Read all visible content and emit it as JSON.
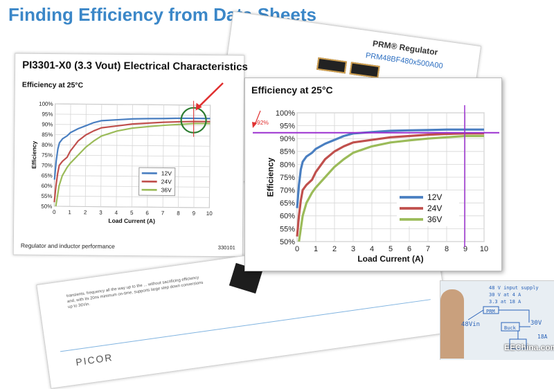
{
  "slide": {
    "title": "Finding Efficiency from Data Sheets"
  },
  "back_sheet": {
    "title": "PRM® Regulator",
    "part_number": "PRM48BF480x500A00"
  },
  "main_sheet": {
    "title": "PI3301-X0 (3.3 Vout) Electrical Characteristics",
    "caption": "Regulator and inductor performance",
    "code": "330101"
  },
  "bottom_sheet": {
    "text": "transients. frequency all the way up to the ... without sacrificing efficiency and, with its 20ns minimum on-time, supports large step down conversions up to 36Vin.",
    "brand": "PICOR"
  },
  "whiteboard": {
    "line1": "48 V input supply",
    "line2": "30 V at 4 A",
    "line3": "3.3 at 18 A",
    "label_vin": "48Vin",
    "label_buck": "Buck",
    "label_30v": "30V",
    "label_18a": "18A",
    "label_prm": "PRM"
  },
  "watermark": "EEChina.com",
  "annotation": {
    "value_label": "~92%",
    "highlight_x": 9,
    "highlight_y": 92
  },
  "colors": {
    "title_blue": "#3b87c8",
    "series_12v": "#4a7fc1",
    "series_24v": "#c0504d",
    "series_36v": "#9bbb59",
    "marker_purple": "#9b30d0",
    "arrow_red": "#e03030",
    "circle_green": "#2e7d32"
  },
  "chart_data": [
    {
      "type": "line",
      "title": "Efficiency at 25°C",
      "xlabel": "Load Current (A)",
      "ylabel": "Efficiency",
      "xlim": [
        0,
        10
      ],
      "ylim": [
        50,
        100
      ],
      "x_ticks": [
        "0",
        "1",
        "2",
        "3",
        "4",
        "5",
        "6",
        "7",
        "8",
        "9",
        "10"
      ],
      "y_ticks": [
        "50%",
        "55%",
        "60%",
        "65%",
        "70%",
        "75%",
        "80%",
        "85%",
        "90%",
        "95%",
        "100%"
      ],
      "legend_position": "right-center",
      "grid": true,
      "series": [
        {
          "name": "12V",
          "x": [
            0.0,
            0.1,
            0.2,
            0.3,
            0.5,
            0.8,
            1.0,
            1.5,
            2.0,
            2.5,
            3.0,
            4.0,
            5.0,
            6.0,
            7.0,
            8.0,
            9.0,
            10.0
          ],
          "y": [
            63,
            72,
            78,
            81,
            83,
            84.5,
            86,
            88,
            89.5,
            91,
            92,
            92.5,
            93,
            93.2,
            93.3,
            93.5,
            93.5,
            93.5
          ]
        },
        {
          "name": "24V",
          "x": [
            0.0,
            0.1,
            0.2,
            0.3,
            0.5,
            0.8,
            1.0,
            1.5,
            2.0,
            2.5,
            3.0,
            4.0,
            5.0,
            6.0,
            7.0,
            8.0,
            9.0,
            10.0
          ],
          "y": [
            52,
            60,
            66,
            70,
            72,
            74,
            77,
            82,
            85,
            87,
            88.5,
            89.5,
            90.5,
            91,
            91.5,
            91.8,
            92,
            92
          ]
        },
        {
          "name": "36V",
          "x": [
            0.1,
            0.2,
            0.3,
            0.5,
            0.8,
            1.0,
            1.5,
            2.0,
            2.5,
            3.0,
            4.0,
            5.0,
            6.0,
            7.0,
            8.0,
            9.0,
            10.0
          ],
          "y": [
            50,
            55,
            60,
            65,
            69,
            71,
            75,
            79,
            82,
            84.5,
            87,
            88.5,
            89.3,
            90,
            90.5,
            91,
            91
          ]
        }
      ]
    }
  ]
}
